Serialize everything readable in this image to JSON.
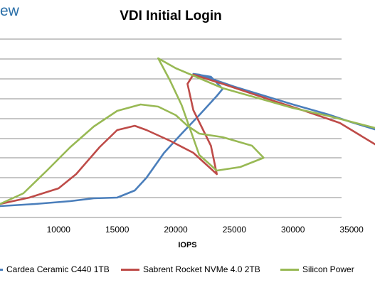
{
  "brand": "ew",
  "chart_data": {
    "type": "line",
    "title": "VDI Initial Login",
    "xlabel": "IOPS",
    "ylabel": "",
    "xlim": [
      5000,
      37000
    ],
    "x_ticks": [
      "10000",
      "15000",
      "20000",
      "25000",
      "30000",
      "35000"
    ],
    "grid": true,
    "legend": "bottom",
    "series": [
      {
        "name": "Cardea Ceramic C440 1TB",
        "color": "#4a7ebb",
        "points": [
          [
            5000,
            290
          ],
          [
            8000,
            287
          ],
          [
            11000,
            283
          ],
          [
            13000,
            279
          ],
          [
            15000,
            278
          ],
          [
            16500,
            268
          ],
          [
            17500,
            250
          ],
          [
            19000,
            215
          ],
          [
            20500,
            188
          ],
          [
            22000,
            162
          ],
          [
            23500,
            135
          ],
          [
            24000,
            125
          ],
          [
            23000,
            108
          ],
          [
            21500,
            104
          ],
          [
            22000,
            105
          ],
          [
            25000,
            122
          ],
          [
            30000,
            147
          ],
          [
            33000,
            161
          ],
          [
            35000,
            172
          ],
          [
            37000,
            182
          ]
        ]
      },
      {
        "name": "Sabrent Rocket NVMe 4.0 2TB",
        "color": "#be4b48",
        "points": [
          [
            5000,
            287
          ],
          [
            7500,
            278
          ],
          [
            10000,
            265
          ],
          [
            11500,
            245
          ],
          [
            13500,
            207
          ],
          [
            15000,
            183
          ],
          [
            16500,
            177
          ],
          [
            17500,
            183
          ],
          [
            19500,
            198
          ],
          [
            21500,
            215
          ],
          [
            22500,
            230
          ],
          [
            23500,
            245
          ],
          [
            23000,
            205
          ],
          [
            21500,
            155
          ],
          [
            21000,
            118
          ],
          [
            21500,
            105
          ],
          [
            24000,
            118
          ],
          [
            28000,
            140
          ],
          [
            31000,
            156
          ],
          [
            34000,
            173
          ],
          [
            37000,
            203
          ]
        ]
      },
      {
        "name": "Silicon Power",
        "color": "#98b954",
        "points": [
          [
            5000,
            287
          ],
          [
            7000,
            272
          ],
          [
            9000,
            240
          ],
          [
            11000,
            207
          ],
          [
            13000,
            178
          ],
          [
            15000,
            156
          ],
          [
            17000,
            147
          ],
          [
            18500,
            150
          ],
          [
            20000,
            162
          ],
          [
            21000,
            177
          ],
          [
            22000,
            188
          ],
          [
            24000,
            193
          ],
          [
            26500,
            205
          ],
          [
            27500,
            222
          ],
          [
            25500,
            235
          ],
          [
            23500,
            240
          ],
          [
            22000,
            218
          ],
          [
            20500,
            148
          ],
          [
            19500,
            113
          ],
          [
            18500,
            82
          ],
          [
            20000,
            96
          ],
          [
            24000,
            124
          ],
          [
            30000,
            152
          ],
          [
            33000,
            163
          ],
          [
            37000,
            180
          ]
        ]
      }
    ]
  }
}
